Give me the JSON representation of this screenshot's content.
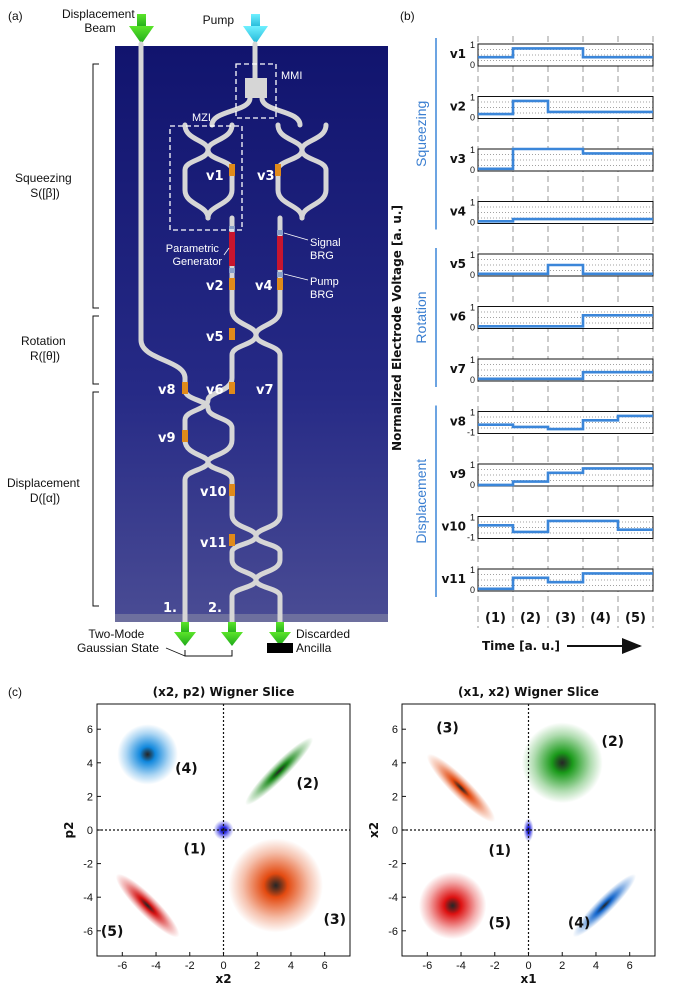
{
  "panel_labels": {
    "a": "(a)",
    "b": "(b)",
    "c": "(c)"
  },
  "chip": {
    "inputs": {
      "displacement_beam": "Displacement\nBeam",
      "pump": "Pump"
    },
    "boxes": {
      "mmi": "MMI",
      "mzi": "MZI"
    },
    "annotations": {
      "parametric_generator": "Parametric\nGenerator",
      "signal_brg": "Signal\nBRG",
      "pump_brg": "Pump\nBRG"
    },
    "electrodes": [
      "v1",
      "v2",
      "v3",
      "v4",
      "v5",
      "v6",
      "v7",
      "v8",
      "v9",
      "v10",
      "v11"
    ],
    "sections": {
      "squeezing": "Squeezing\nS([β])",
      "rotation": "Rotation\nR([θ])",
      "displacement": "Displacement\nD([α])"
    },
    "outputs": {
      "port1": "1.",
      "port2": "2.",
      "two_mode": "Two-Mode\nGaussian State",
      "discarded": "Discarded\nAncilla"
    }
  },
  "voltage_chart": {
    "ylabel": "Normalized Electrode Voltage [a. u.]",
    "xlabel": "Time [a. u.]",
    "phases": [
      "(1)",
      "(2)",
      "(3)",
      "(4)",
      "(5)"
    ],
    "groups": [
      "Squeezing",
      "Rotation",
      "Displacement"
    ],
    "color": "#3b86d9"
  },
  "chart_data": [
    {
      "type": "line",
      "title": "",
      "xlabel": "Time [a. u.]",
      "ylabel": "Normalized Electrode Voltage [a. u.]",
      "categories": [
        "(1)",
        "(2)",
        "(3)",
        "(4)",
        "(5)"
      ],
      "series": [
        {
          "name": "v1",
          "ticks": [
            "1",
            "0"
          ],
          "range": [
            0,
            1
          ],
          "values": [
            0.4,
            0.8,
            0.8,
            0.4,
            0.4
          ]
        },
        {
          "name": "v2",
          "ticks": [
            "1",
            "0"
          ],
          "range": [
            0,
            1
          ],
          "values": [
            0.2,
            0.8,
            0.3,
            0.3,
            0.3
          ]
        },
        {
          "name": "v3",
          "ticks": [
            "1",
            "0"
          ],
          "range": [
            0,
            1
          ],
          "values": [
            0.1,
            1.0,
            1.0,
            0.8,
            0.8
          ]
        },
        {
          "name": "v4",
          "ticks": [
            "1",
            "0"
          ],
          "range": [
            0,
            1
          ],
          "values": [
            0.1,
            0.2,
            0.2,
            0.2,
            0.2
          ]
        },
        {
          "name": "v5",
          "ticks": [
            "1",
            "0"
          ],
          "range": [
            0,
            1
          ],
          "values": [
            0.1,
            0.1,
            0.5,
            0.1,
            0.1
          ]
        },
        {
          "name": "v6",
          "ticks": [
            "1",
            "0"
          ],
          "range": [
            0,
            1
          ],
          "values": [
            0.1,
            0.1,
            0.1,
            0.6,
            0.6
          ]
        },
        {
          "name": "v7",
          "ticks": [
            "1",
            "0"
          ],
          "range": [
            0,
            1
          ],
          "values": [
            0.1,
            0.1,
            0.1,
            0.4,
            0.4
          ]
        },
        {
          "name": "v8",
          "ticks": [
            "1",
            "-1"
          ],
          "range": [
            -1,
            1
          ],
          "values": [
            -0.2,
            -0.4,
            -0.6,
            0.2,
            0.6
          ]
        },
        {
          "name": "v9",
          "ticks": [
            "1",
            "0"
          ],
          "range": [
            0,
            1
          ],
          "values": [
            0.05,
            0.2,
            0.6,
            0.8,
            0.8
          ]
        },
        {
          "name": "v10",
          "ticks": [
            "1",
            "-1"
          ],
          "range": [
            -1,
            1
          ],
          "values": [
            0.2,
            -0.4,
            0.6,
            0.6,
            -0.2
          ]
        },
        {
          "name": "v11",
          "ticks": [
            "1",
            "0"
          ],
          "range": [
            0,
            1
          ],
          "values": [
            0.1,
            0.6,
            0.4,
            0.8,
            0.8
          ]
        }
      ]
    },
    {
      "type": "scatter",
      "title": "(x2, p2) Wigner Slice",
      "xlabel": "x2",
      "ylabel": "p2",
      "xlim": [
        -7.5,
        7.5
      ],
      "ylim": [
        -7.5,
        7.5
      ],
      "ticks": [
        -6,
        -4,
        -2,
        0,
        2,
        4,
        6
      ],
      "blobs": [
        {
          "label": "(1)",
          "cx": 0,
          "cy": 0,
          "rx": 0.6,
          "ry": 0.6,
          "angle": 0,
          "color": "#2020e0"
        },
        {
          "label": "(2)",
          "cx": 3.3,
          "cy": 3.5,
          "rx": 2.8,
          "ry": 0.5,
          "angle": 45,
          "color": "#1a8a1a"
        },
        {
          "label": "(3)",
          "cx": 3.1,
          "cy": -3.3,
          "rx": 2.8,
          "ry": 2.8,
          "angle": 0,
          "color": "#e34a10"
        },
        {
          "label": "(4)",
          "cx": -4.5,
          "cy": 4.5,
          "rx": 1.8,
          "ry": 1.8,
          "angle": 0,
          "color": "#1188dd"
        },
        {
          "label": "(5)",
          "cx": -4.5,
          "cy": -4.5,
          "rx": 2.6,
          "ry": 0.6,
          "angle": -45,
          "color": "#d41212"
        }
      ],
      "labels": [
        {
          "text": "(1)",
          "x": -1.7,
          "y": -1.4
        },
        {
          "text": "(2)",
          "x": 5.0,
          "y": 2.5
        },
        {
          "text": "(3)",
          "x": 6.6,
          "y": -5.6
        },
        {
          "text": "(4)",
          "x": -2.2,
          "y": 3.4
        },
        {
          "text": "(5)",
          "x": -6.6,
          "y": -6.3
        }
      ]
    },
    {
      "type": "scatter",
      "title": "(x1, x2) Wigner Slice",
      "xlabel": "x1",
      "ylabel": "x2",
      "xlim": [
        -7.5,
        7.5
      ],
      "ylim": [
        -7.5,
        7.5
      ],
      "ticks": [
        -6,
        -4,
        -2,
        0,
        2,
        4,
        6
      ],
      "blobs": [
        {
          "label": "(1)",
          "cx": 0,
          "cy": 0,
          "rx": 0.3,
          "ry": 0.7,
          "angle": 0,
          "color": "#2020e0"
        },
        {
          "label": "(2)",
          "cx": 2.0,
          "cy": 4.0,
          "rx": 2.4,
          "ry": 2.4,
          "angle": 0,
          "color": "#1a9a1a"
        },
        {
          "label": "(3)",
          "cx": -4.0,
          "cy": 2.5,
          "rx": 2.8,
          "ry": 0.6,
          "angle": -45,
          "color": "#e34a10"
        },
        {
          "label": "(4)",
          "cx": 4.5,
          "cy": -4.5,
          "rx": 2.6,
          "ry": 0.5,
          "angle": 45,
          "color": "#1466cc"
        },
        {
          "label": "(5)",
          "cx": -4.5,
          "cy": -4.5,
          "rx": 2.0,
          "ry": 2.0,
          "angle": 0,
          "color": "#dd1111"
        }
      ],
      "labels": [
        {
          "text": "(1)",
          "x": -1.7,
          "y": -1.5
        },
        {
          "text": "(2)",
          "x": 5.0,
          "y": 5.0
        },
        {
          "text": "(3)",
          "x": -4.8,
          "y": 5.8
        },
        {
          "text": "(4)",
          "x": 3.0,
          "y": -5.8
        },
        {
          "text": "(5)",
          "x": -1.7,
          "y": -5.8
        }
      ]
    }
  ]
}
